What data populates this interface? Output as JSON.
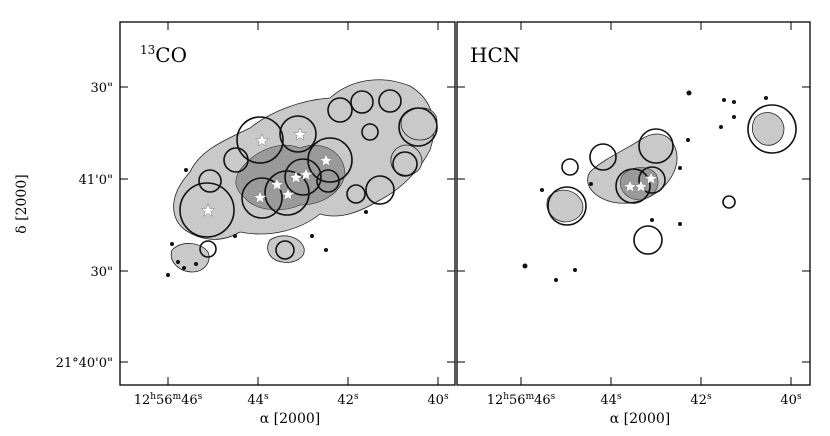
{
  "figure": {
    "y_axis_title": "δ [2000]",
    "x_axis_title_left": "α [2000]",
    "x_axis_title_right": "α [2000]",
    "y_tick_labels": [
      "30\"",
      "41'0\"",
      "30\"",
      "21°40'0\""
    ],
    "x_tick_labels": [
      {
        "h": "12",
        "m": "56",
        "s": "46",
        "first": true
      },
      {
        "s": "44"
      },
      {
        "s": "42"
      },
      {
        "s": "40"
      }
    ],
    "x_tick_superscripts": {
      "h": "h",
      "m": "m",
      "s": "s"
    },
    "panels": [
      {
        "id": "co",
        "title_superscript": "13",
        "title_main": "CO"
      },
      {
        "id": "hcn",
        "title_superscript": "",
        "title_main": "HCN"
      }
    ]
  },
  "chart_data": {
    "type": "scatter",
    "title": "",
    "xlabel": "α [2000]",
    "ylabel": "δ [2000]",
    "x_ticks": [
      "12h56m46s",
      "44s",
      "42s",
      "40s"
    ],
    "y_ticks": [
      "21°41'30\"",
      "21°41'0\"",
      "21°40'30\"",
      "21°40'0\""
    ],
    "grid": false,
    "panels": [
      {
        "name": "13CO",
        "description_of_marks": "grey emission contours, circled clumps, star markers",
        "stars_count": 9
      },
      {
        "name": "HCN",
        "description_of_marks": "grey emission contours, circled clumps, star markers",
        "stars_count": 3
      }
    ]
  },
  "colors": {
    "emission_fill": "#c9c9c9",
    "emission_dense": "#9a9a9a",
    "outline": "#111111",
    "star": "#ffffff"
  }
}
